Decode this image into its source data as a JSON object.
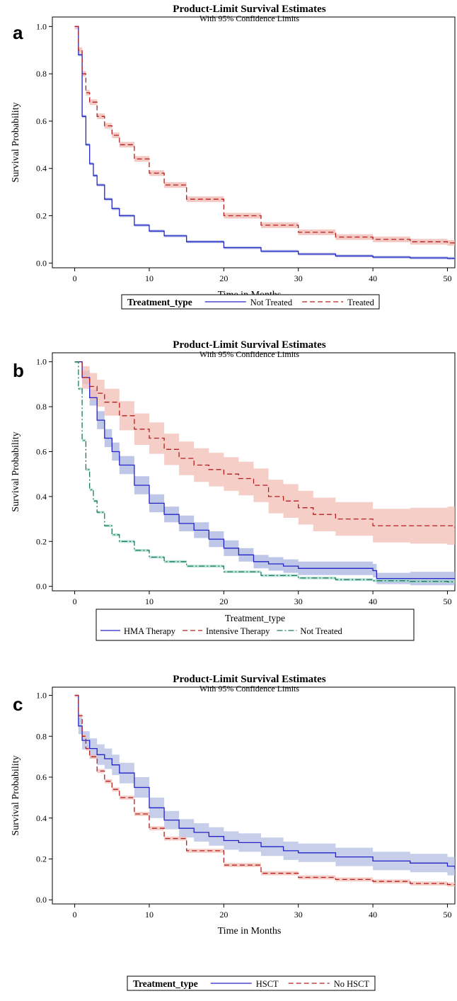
{
  "chart_data": [
    {
      "type": "line",
      "panel": "a",
      "title": "Product-Limit Survival Estimates",
      "subtitle": "With 95% Confidence Limits",
      "xlabel": "Time in Months",
      "ylabel": "Survival Probability",
      "xlim": [
        -3,
        51
      ],
      "ylim": [
        -0.02,
        1.04
      ],
      "xticks": [
        "0",
        "10",
        "20",
        "30",
        "40",
        "50"
      ],
      "yticks": [
        "0.0",
        "0.2",
        "0.4",
        "0.6",
        "0.8",
        "1.0"
      ],
      "legend": {
        "title": "Treatment_type",
        "layout": "inline",
        "placement": "bottom"
      },
      "series": [
        {
          "name": "Not Treated",
          "color": "#2323c8",
          "band_color": "#a9b4e0",
          "dash": "solid",
          "x": [
            0,
            0.5,
            1,
            1.5,
            2,
            2.5,
            3,
            4,
            5,
            6,
            8,
            10,
            12,
            15,
            20,
            25,
            30,
            35,
            40,
            45,
            50,
            51
          ],
          "y": [
            1.0,
            0.88,
            0.62,
            0.5,
            0.42,
            0.37,
            0.33,
            0.27,
            0.23,
            0.2,
            0.16,
            0.135,
            0.115,
            0.09,
            0.065,
            0.05,
            0.038,
            0.03,
            0.025,
            0.022,
            0.02,
            0.02
          ],
          "ci_halfwidth": 0.006
        },
        {
          "name": "Treated",
          "color": "#b41e1e",
          "band_color": "#f0b7b0",
          "dash": "dashed",
          "x": [
            0,
            0.5,
            1,
            1.5,
            2,
            3,
            4,
            5,
            6,
            8,
            10,
            12,
            15,
            20,
            25,
            30,
            35,
            40,
            45,
            50,
            51
          ],
          "y": [
            1.0,
            0.9,
            0.8,
            0.72,
            0.68,
            0.62,
            0.58,
            0.54,
            0.5,
            0.44,
            0.38,
            0.33,
            0.27,
            0.2,
            0.16,
            0.13,
            0.11,
            0.1,
            0.09,
            0.085,
            0.085
          ],
          "ci_halfwidth": 0.012
        }
      ]
    },
    {
      "type": "line",
      "panel": "b",
      "title": "Product-Limit Survival Estimates",
      "subtitle": "With 95% Confidence Limits",
      "xlabel": "Time in Months",
      "ylabel": "Survival Probability",
      "xlim": [
        -3,
        51
      ],
      "ylim": [
        -0.02,
        1.04
      ],
      "xticks": [
        "0",
        "10",
        "20",
        "30",
        "40",
        "50"
      ],
      "yticks": [
        "0.0",
        "0.2",
        "0.4",
        "0.6",
        "0.8",
        "1.0"
      ],
      "legend": {
        "title": "Treatment_type",
        "layout": "stacked",
        "placement": "bottom"
      },
      "series": [
        {
          "name": "HMA Therapy",
          "color": "#2323c8",
          "band_color": "#a9b4e0",
          "dash": "solid",
          "x": [
            0,
            1,
            2,
            3,
            4,
            5,
            6,
            8,
            10,
            12,
            14,
            16,
            18,
            20,
            22,
            24,
            26,
            28,
            30,
            35,
            40,
            40.5,
            45,
            50,
            51
          ],
          "y": [
            1.0,
            0.93,
            0.84,
            0.74,
            0.66,
            0.6,
            0.54,
            0.45,
            0.37,
            0.32,
            0.28,
            0.25,
            0.21,
            0.17,
            0.14,
            0.11,
            0.1,
            0.09,
            0.08,
            0.08,
            0.07,
            0.035,
            0.035,
            0.035,
            0.035
          ],
          "ci_halfwidth": [
            0.0,
            0.03,
            0.035,
            0.04,
            0.04,
            0.04,
            0.04,
            0.04,
            0.04,
            0.035,
            0.035,
            0.035,
            0.035,
            0.035,
            0.03,
            0.03,
            0.03,
            0.03,
            0.03,
            0.03,
            0.03,
            0.025,
            0.03,
            0.03,
            0.03
          ]
        },
        {
          "name": "Intensive Therapy",
          "color": "#b41e1e",
          "band_color": "#f3bdb5",
          "dash": "dashed",
          "x": [
            0,
            1,
            2,
            3,
            4,
            6,
            8,
            10,
            12,
            14,
            16,
            18,
            20,
            22,
            24,
            26,
            28,
            30,
            32,
            35,
            38,
            40,
            45,
            50,
            51
          ],
          "y": [
            1.0,
            0.93,
            0.89,
            0.86,
            0.82,
            0.76,
            0.7,
            0.66,
            0.61,
            0.57,
            0.54,
            0.52,
            0.5,
            0.48,
            0.45,
            0.4,
            0.38,
            0.35,
            0.32,
            0.3,
            0.3,
            0.27,
            0.27,
            0.27,
            0.26
          ],
          "ci_halfwidth": [
            0.0,
            0.05,
            0.06,
            0.06,
            0.06,
            0.065,
            0.07,
            0.07,
            0.07,
            0.075,
            0.075,
            0.075,
            0.075,
            0.075,
            0.075,
            0.075,
            0.075,
            0.075,
            0.075,
            0.075,
            0.075,
            0.075,
            0.08,
            0.085,
            0.085
          ]
        },
        {
          "name": "Not Treated",
          "color": "#1d7a5f",
          "band_color": "#9fd6c8",
          "dash": "dashdot",
          "x": [
            0,
            0.5,
            1,
            1.5,
            2,
            2.5,
            3,
            4,
            5,
            6,
            8,
            10,
            12,
            15,
            20,
            25,
            30,
            35,
            40,
            45,
            50,
            51
          ],
          "y": [
            1.0,
            0.88,
            0.65,
            0.52,
            0.43,
            0.38,
            0.33,
            0.27,
            0.23,
            0.2,
            0.16,
            0.13,
            0.11,
            0.09,
            0.065,
            0.048,
            0.037,
            0.03,
            0.025,
            0.022,
            0.02,
            0.02
          ],
          "ci_halfwidth": 0.006
        }
      ]
    },
    {
      "type": "line",
      "panel": "c",
      "title": "Product-Limit Survival Estimates",
      "subtitle": "With 95% Confidence Limits",
      "xlabel": "Time in Months",
      "ylabel": "Survival Probability",
      "xlim": [
        -3,
        51
      ],
      "ylim": [
        -0.02,
        1.04
      ],
      "xticks": [
        "0",
        "10",
        "20",
        "30",
        "40",
        "50"
      ],
      "yticks": [
        "0.0",
        "0.2",
        "0.4",
        "0.6",
        "0.8",
        "1.0"
      ],
      "legend": {
        "title": "Treatment_type",
        "layout": "inline",
        "placement": "bottom"
      },
      "series": [
        {
          "name": "HSCT",
          "color": "#2323c8",
          "band_color": "#b3bde3",
          "dash": "solid",
          "x": [
            0,
            0.5,
            1,
            2,
            3,
            4,
            5,
            6,
            8,
            10,
            12,
            14,
            16,
            18,
            20,
            22,
            25,
            28,
            30,
            35,
            40,
            45,
            50,
            51
          ],
          "y": [
            1.0,
            0.85,
            0.78,
            0.74,
            0.71,
            0.69,
            0.66,
            0.62,
            0.55,
            0.45,
            0.39,
            0.35,
            0.33,
            0.31,
            0.29,
            0.28,
            0.26,
            0.24,
            0.23,
            0.21,
            0.19,
            0.18,
            0.165,
            0.15
          ],
          "ci_halfwidth": [
            0.0,
            0.04,
            0.045,
            0.05,
            0.05,
            0.05,
            0.05,
            0.05,
            0.05,
            0.05,
            0.045,
            0.045,
            0.045,
            0.045,
            0.045,
            0.045,
            0.045,
            0.045,
            0.045,
            0.045,
            0.045,
            0.045,
            0.045,
            0.045
          ]
        },
        {
          "name": "No HSCT",
          "color": "#b41e1e",
          "band_color": "#f2bcb3",
          "dash": "dashed",
          "x": [
            0,
            0.5,
            1,
            1.5,
            2,
            3,
            4,
            5,
            6,
            8,
            10,
            12,
            15,
            20,
            25,
            30,
            35,
            40,
            45,
            50,
            51
          ],
          "y": [
            1.0,
            0.9,
            0.8,
            0.74,
            0.7,
            0.63,
            0.58,
            0.54,
            0.5,
            0.42,
            0.35,
            0.3,
            0.24,
            0.17,
            0.13,
            0.11,
            0.1,
            0.09,
            0.08,
            0.075,
            0.075
          ],
          "ci_halfwidth": 0.01
        }
      ]
    }
  ]
}
